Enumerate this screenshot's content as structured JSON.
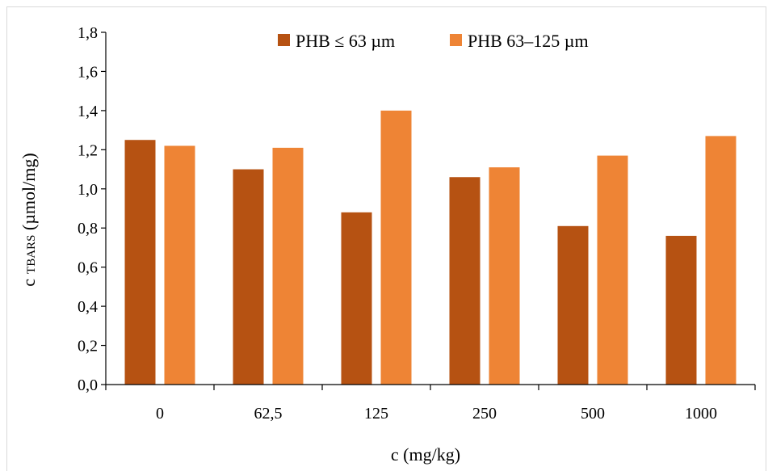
{
  "chart_data": {
    "type": "bar",
    "title": "",
    "xlabel": "c (mg/kg)",
    "ylabel_main": "c",
    "ylabel_sub": "TBARS",
    "ylabel_unit": " (µmol/mg)",
    "categories": [
      "0",
      "62,5",
      "125",
      "250",
      "500",
      "1000"
    ],
    "series": [
      {
        "name": "PHB ≤ 63 µm",
        "color": "#b65212",
        "values": [
          1.25,
          1.1,
          0.88,
          1.06,
          0.81,
          0.76
        ]
      },
      {
        "name": "PHB 63–125 µm",
        "color": "#ee8435",
        "values": [
          1.22,
          1.21,
          1.4,
          1.11,
          1.17,
          1.27
        ]
      }
    ],
    "ylim": [
      0,
      1.8
    ],
    "yticks": [
      "0,0",
      "0,2",
      "0,4",
      "0,6",
      "0,8",
      "1,0",
      "1,2",
      "1,4",
      "1,6",
      "1,8"
    ],
    "grid": false,
    "legend_position": "top-right"
  }
}
